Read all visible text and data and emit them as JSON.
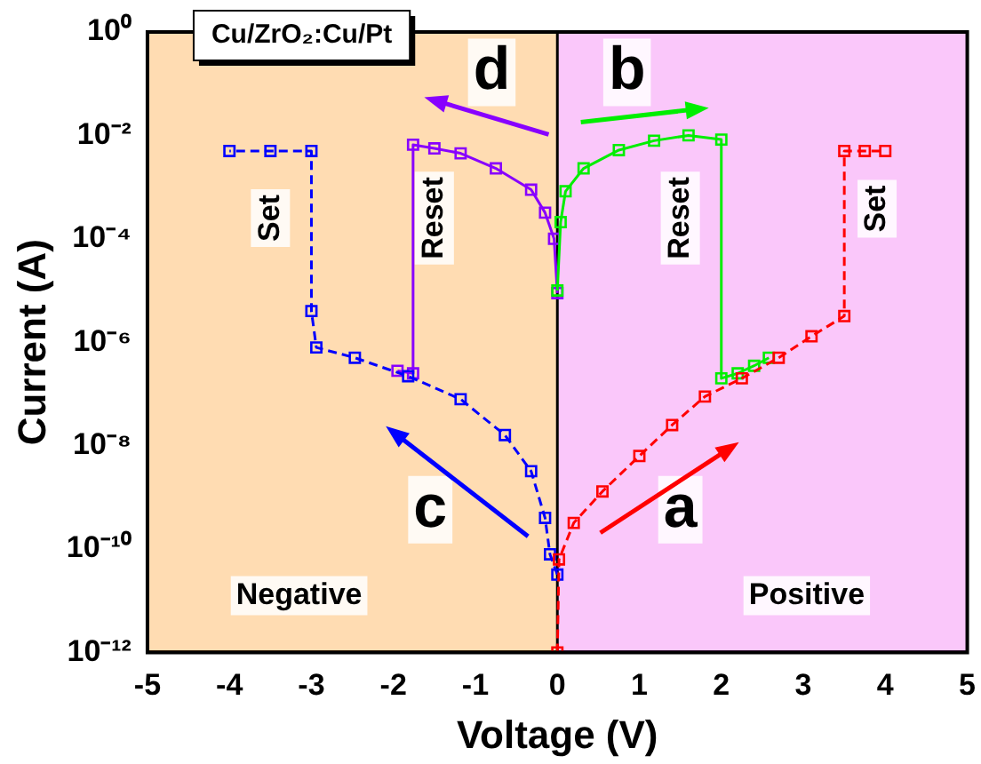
{
  "chart_data": {
    "type": "line",
    "title": "Cu/ZrO₂:Cu/Pt",
    "xlabel": "Voltage (V)",
    "ylabel": "Current (A)",
    "xlim": [
      -5,
      5
    ],
    "xticks": [
      -5,
      -4,
      -3,
      -2,
      -1,
      0,
      1,
      2,
      3,
      4,
      5
    ],
    "ylim": [
      1e-12,
      1
    ],
    "log": "y",
    "yticks": [
      {
        "value": 1e-12,
        "label": "10⁻¹²"
      },
      {
        "value": 1e-10,
        "label": "10⁻¹⁰"
      },
      {
        "value": 1e-08,
        "label": "10⁻⁸"
      },
      {
        "value": 1e-06,
        "label": "10⁻⁶"
      },
      {
        "value": 0.0001,
        "label": "10⁻⁴"
      },
      {
        "value": 0.01,
        "label": "10⁻²"
      },
      {
        "value": 1,
        "label": "10⁰"
      }
    ],
    "grid": false,
    "legend": false,
    "marker": "square",
    "series": [
      {
        "color": "#ff0000",
        "line_style": "dashed",
        "x": [
          0,
          0.02,
          0.2,
          0.55,
          1.0,
          1.4,
          1.8,
          2.25,
          2.7,
          3.1,
          3.5,
          3.5,
          3.75,
          4.0
        ],
        "values": [
          1e-12,
          6.3e-11,
          3.2e-10,
          1.3e-09,
          6.3e-09,
          2.5e-08,
          8.9e-08,
          2e-07,
          5e-07,
          1.3e-06,
          3.2e-06,
          0.005,
          0.005,
          0.005
        ]
      },
      {
        "color": "#00ee00",
        "line_style": "solid",
        "x": [
          0,
          0.04,
          0.1,
          0.32,
          0.75,
          1.18,
          1.6,
          2.0,
          2.0,
          2.2,
          2.4,
          2.58
        ],
        "values": [
          1e-05,
          0.00021,
          0.00083,
          0.0023,
          0.0052,
          0.0079,
          0.01,
          0.0083,
          2e-07,
          2.5e-07,
          3.5e-07,
          5e-07
        ]
      },
      {
        "color": "#0000ff",
        "line_style": "dashed",
        "x": [
          0,
          -0.09,
          -0.15,
          -0.32,
          -0.64,
          -1.18,
          -1.82,
          -2.47,
          -2.94,
          -3.0,
          -3.0,
          -3.5,
          -4.0
        ],
        "values": [
          3.2e-11,
          7.9e-11,
          4e-10,
          3.2e-09,
          1.6e-08,
          7.9e-08,
          2.2e-07,
          5e-07,
          7.9e-07,
          4e-06,
          0.005,
          0.005,
          0.005
        ]
      },
      {
        "color": "#8800ff",
        "line_style": "solid",
        "x": [
          0,
          -0.04,
          -0.15,
          -0.32,
          -0.75,
          -1.18,
          -1.5,
          -1.76,
          -1.76,
          -1.95
        ],
        "values": [
          8.9e-06,
          0.0001,
          0.00032,
          0.00089,
          0.0023,
          0.0045,
          0.0056,
          0.0066,
          2.5e-07,
          2.8e-07
        ]
      }
    ],
    "bands": [
      {
        "axis": "x",
        "from": -5,
        "to": 0,
        "label": "Negative",
        "color": "#ff8c00"
      },
      {
        "axis": "x",
        "from": 0,
        "to": 5,
        "label": "Positive",
        "color": "#ee44ee"
      }
    ],
    "ref_lines": [
      {
        "axis": "x",
        "value": 0,
        "color": "#000000"
      }
    ],
    "annotations": [
      "Set",
      "Reset",
      "Reset",
      "Set",
      "a",
      "b",
      "c",
      "d"
    ]
  }
}
